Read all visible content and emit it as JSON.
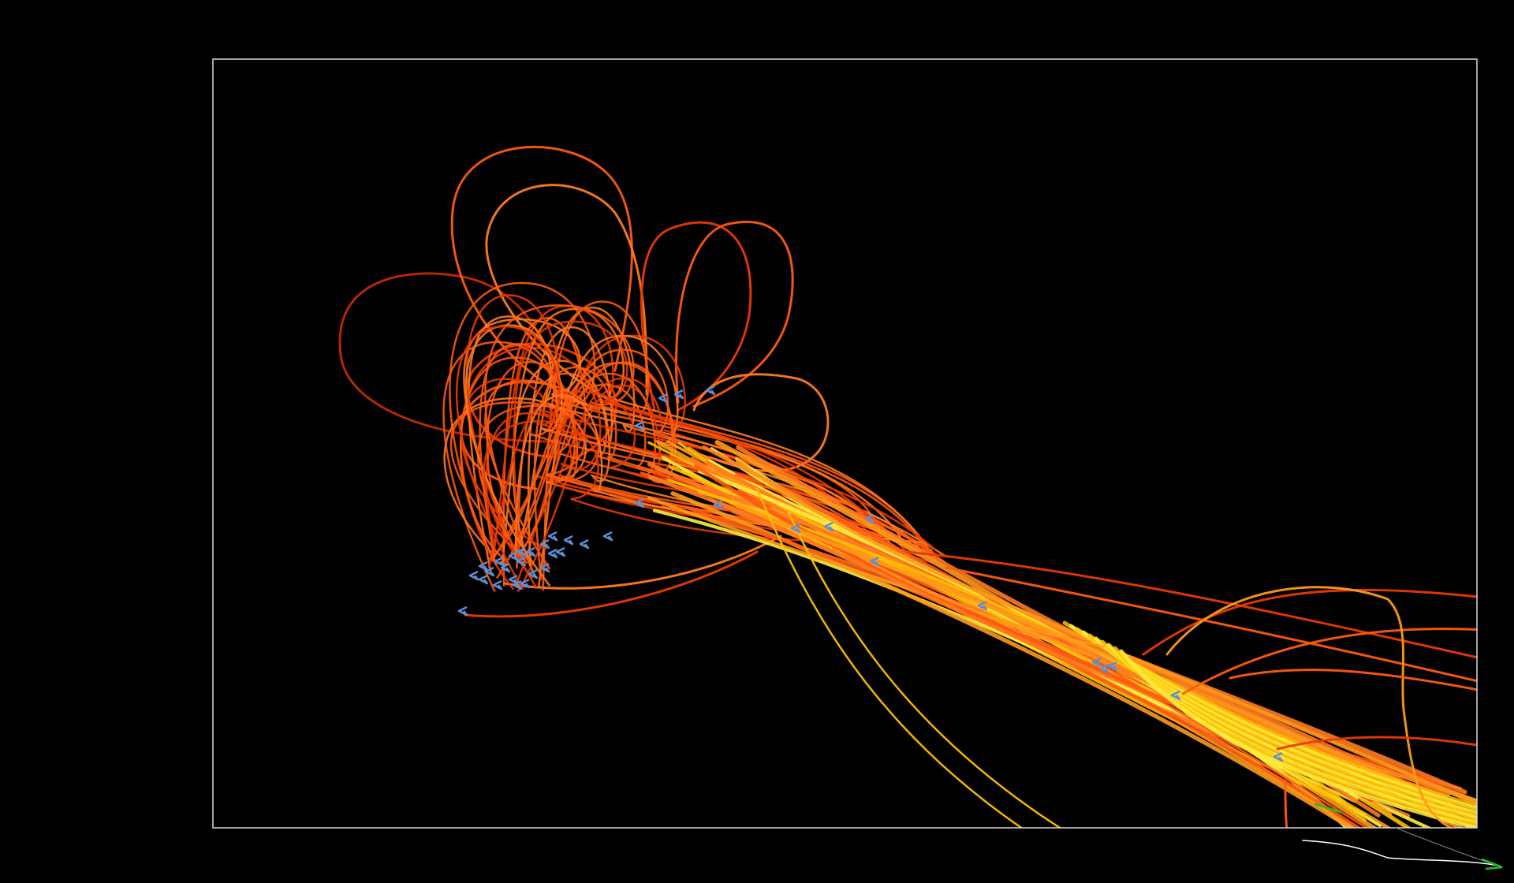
{
  "scene": {
    "background_color": "#000000",
    "frame_color": "#d8d8d8",
    "trail_colors": [
      "#e83a00",
      "#ff5a10",
      "#ff7a20",
      "#ff9a1a",
      "#ffc000",
      "#ffee40",
      "#c02a00"
    ],
    "marker_color": "#5c8fd8",
    "endpoint_color": "#22c022",
    "tail_line_color": "#ffffff",
    "trail_count": 40,
    "marker_count": 40,
    "description_icon": "particle-trajectories"
  }
}
